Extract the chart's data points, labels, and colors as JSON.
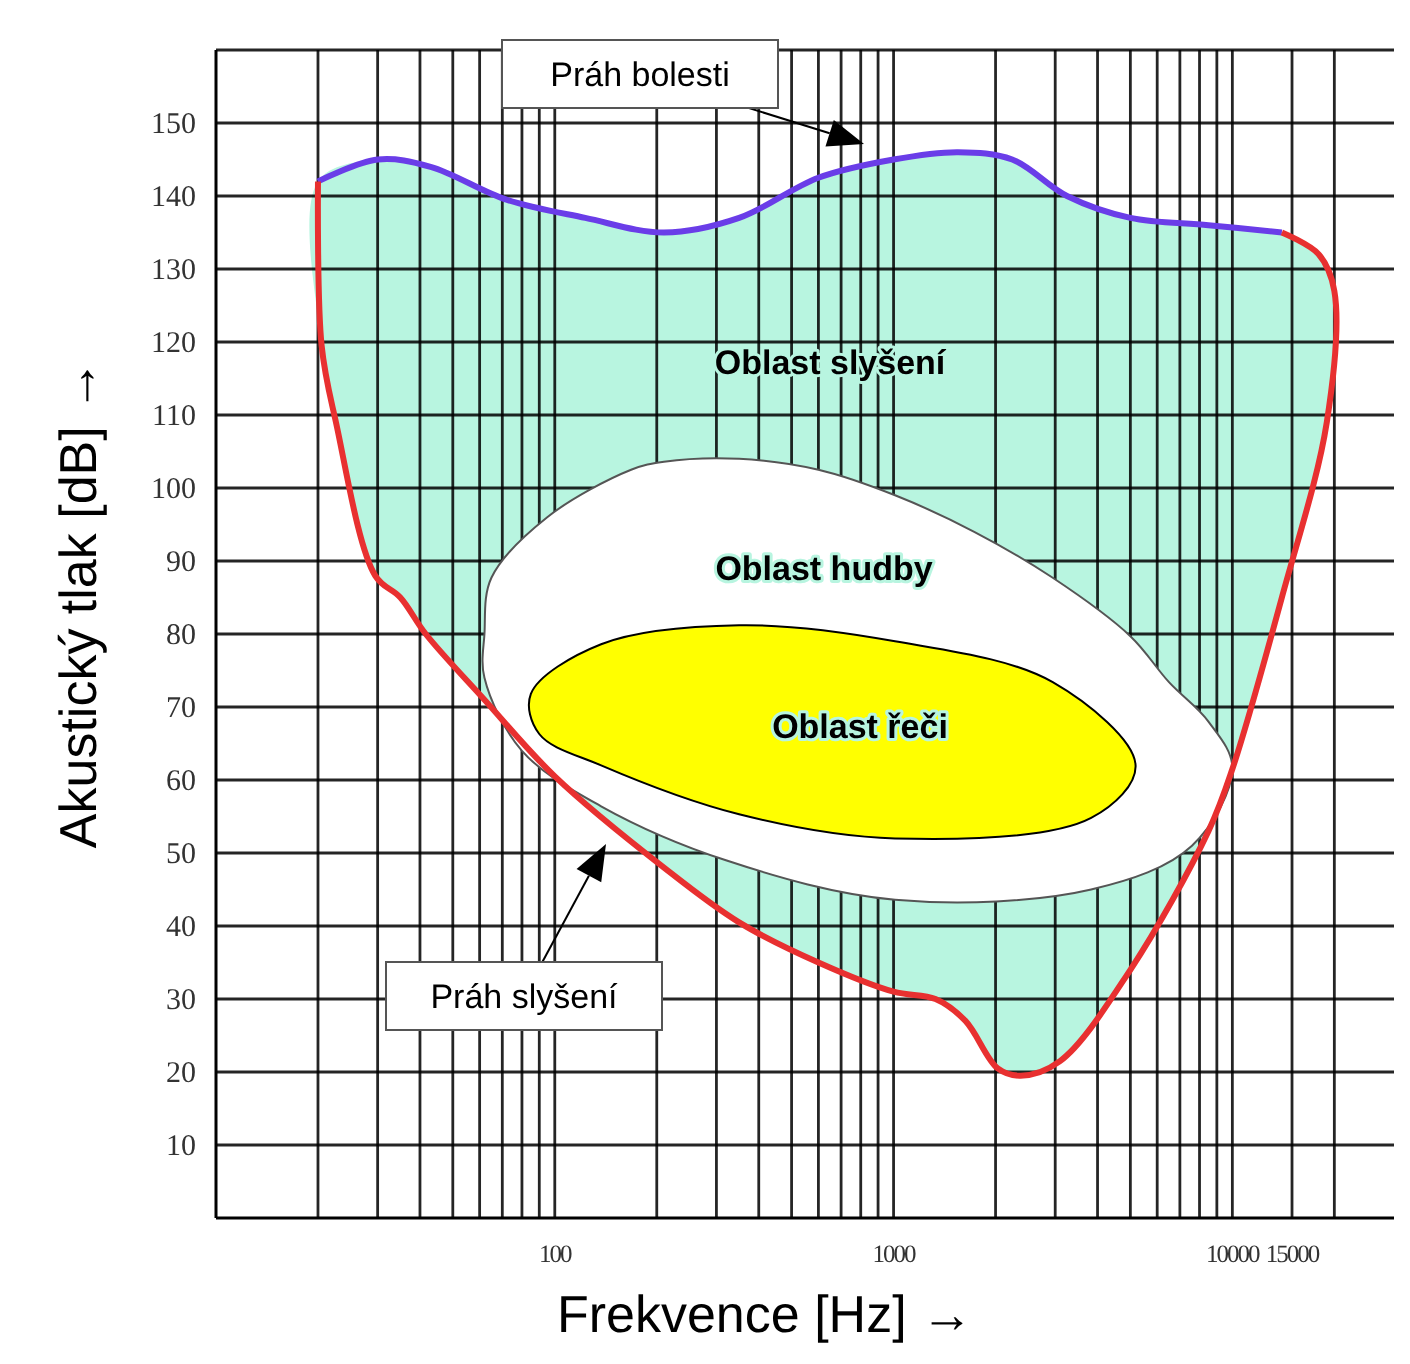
{
  "chart_data": {
    "type": "line",
    "xlabel": "Frekvence [Hz] →",
    "ylabel": "Akustický tlak [dB] →",
    "log": "x",
    "grid": true,
    "marker": "none",
    "xlim": [
      10,
      30000
    ],
    "ylim": [
      0,
      160
    ],
    "xticks": [
      {
        "value": 20,
        "label": null
      },
      {
        "value": 30,
        "label": null
      },
      {
        "value": 40,
        "label": null
      },
      {
        "value": 50,
        "label": null
      },
      {
        "value": 60,
        "label": null
      },
      {
        "value": 70,
        "label": null
      },
      {
        "value": 80,
        "label": null
      },
      {
        "value": 90,
        "label": null
      },
      100,
      {
        "value": 200,
        "label": null
      },
      {
        "value": 300,
        "label": null
      },
      {
        "value": 400,
        "label": null
      },
      {
        "value": 500,
        "label": null
      },
      {
        "value": 600,
        "label": null
      },
      {
        "value": 700,
        "label": null
      },
      {
        "value": 800,
        "label": null
      },
      {
        "value": 900,
        "label": null
      },
      1000,
      {
        "value": 2000,
        "label": null
      },
      {
        "value": 3000,
        "label": null
      },
      {
        "value": 4000,
        "label": null
      },
      {
        "value": 5000,
        "label": null
      },
      {
        "value": 6000,
        "label": null
      },
      {
        "value": 7000,
        "label": null
      },
      {
        "value": 8000,
        "label": null
      },
      {
        "value": 9000,
        "label": null
      },
      10000,
      15000,
      {
        "value": 20000,
        "label": null
      }
    ],
    "yticks": [
      10,
      20,
      30,
      40,
      50,
      60,
      70,
      80,
      90,
      100,
      110,
      120,
      130,
      140,
      150,
      {
        "value": 160,
        "label": null
      }
    ],
    "series": [
      {
        "type": "area",
        "color": "#b8f5e0",
        "x": [
          20,
          30,
          43,
          72,
          123,
          210,
          350,
          600,
          1000,
          1550,
          2240,
          3250,
          5000,
          8500,
          14000,
          18000,
          20000,
          19000,
          14000,
          10000,
          8500,
          5000,
          3100,
          2370,
          2030,
          1630,
          1330,
          1000,
          600,
          350,
          210,
          100,
          62,
          41.6,
          35,
          29.5,
          22.6,
          20.5
        ],
        "values": [
          142,
          145,
          144,
          139.5,
          137,
          135,
          137,
          142.5,
          145,
          146,
          145,
          140,
          137,
          136,
          135,
          132,
          127,
          109,
          85,
          61.5,
          53,
          34,
          21.5,
          19.5,
          20.5,
          27,
          30,
          31,
          35,
          40.5,
          48,
          60.5,
          71,
          80,
          85,
          88,
          109,
          119.5
        ]
      },
      {
        "type": "area",
        "color": "#ffffff",
        "x": [
          168,
          95,
          65,
          62,
          62,
          80,
          137,
          320,
          1010,
          3830,
          7600,
          10000,
          8500,
          6500,
          5000,
          2950,
          1730,
          1010,
          600,
          350,
          210
        ],
        "values": [
          102.5,
          96,
          87.7,
          80,
          74,
          64,
          56.4,
          49,
          43.6,
          45,
          51,
          61.6,
          68,
          73.4,
          79.7,
          87.7,
          94,
          99,
          102.5,
          104,
          103.6
        ]
      },
      {
        "type": "area",
        "color": "#ffff00",
        "x": [
          85,
          137,
          350,
          1010,
          2950,
          5180,
          3830,
          1010,
          350,
          137,
          90
        ],
        "values": [
          71.8,
          78.6,
          81.2,
          79,
          73.4,
          62,
          54.8,
          52,
          55.3,
          62,
          66.3
        ]
      },
      {
        "color": "#6a3de8",
        "x": [
          20,
          30,
          43,
          72,
          123,
          210,
          350,
          600,
          1000,
          1550,
          2240,
          3250,
          5000,
          8500,
          14000
        ],
        "values": [
          142,
          145,
          144,
          139.5,
          137,
          135,
          137,
          142.5,
          145,
          146,
          145,
          140,
          137,
          136,
          135
        ]
      },
      {
        "color": "#e83030",
        "x": [
          20,
          20.5,
          22.6,
          29.5,
          35,
          41.6,
          62,
          100,
          210,
          350,
          600,
          1000,
          1330,
          1630,
          2030,
          2370,
          3100,
          5000,
          8500,
          10000,
          14000,
          19000,
          20000,
          18000,
          14000
        ],
        "values": [
          142,
          119.5,
          109,
          88,
          85,
          80,
          71,
          60.5,
          48,
          40.5,
          35,
          31,
          30,
          27,
          20.5,
          19.5,
          21.5,
          34,
          53,
          61.5,
          85,
          109,
          127,
          132,
          135
        ]
      }
    ],
    "annotations": [
      "Práh bolesti",
      "Práh slyšení",
      "Oblast slyšení",
      "Oblast hudby",
      "Oblast řeči"
    ]
  }
}
